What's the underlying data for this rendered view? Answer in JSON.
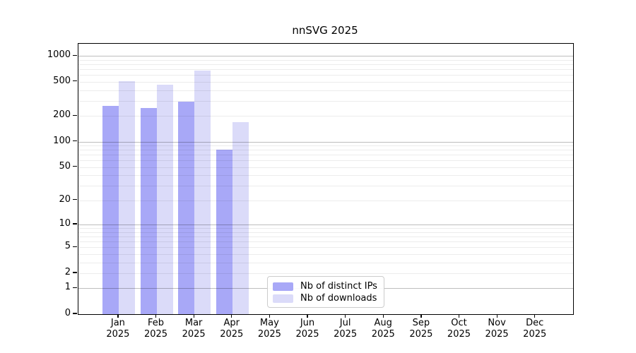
{
  "title": "nnSVG 2025",
  "chart_data": {
    "type": "bar",
    "title": "nnSVG 2025",
    "categories": [
      "Jan 2025",
      "Feb 2025",
      "Mar 2025",
      "Apr 2025",
      "May 2025",
      "Jun 2025",
      "Jul 2025",
      "Aug 2025",
      "Sep 2025",
      "Oct 2025",
      "Nov 2025",
      "Dec 2025"
    ],
    "month_labels": [
      "Jan",
      "Feb",
      "Mar",
      "Apr",
      "May",
      "Jun",
      "Jul",
      "Aug",
      "Sep",
      "Oct",
      "Nov",
      "Dec"
    ],
    "year_label": "2025",
    "series": [
      {
        "name": "Nb of distinct IPs",
        "color": "#a8a8f7",
        "values": [
          260,
          245,
          295,
          80,
          null,
          null,
          null,
          null,
          null,
          null,
          null,
          null
        ]
      },
      {
        "name": "Nb of downloads",
        "color": "#dbdbf9",
        "values": [
          510,
          460,
          675,
          170,
          null,
          null,
          null,
          null,
          null,
          null,
          null,
          null
        ]
      }
    ],
    "xlabel": "",
    "ylabel": "",
    "y_scale": "log10(1+x)",
    "y_ticks": [
      0,
      1,
      2,
      5,
      10,
      20,
      50,
      100,
      200,
      500,
      1000
    ],
    "y_minor_gridlines": [
      2,
      3,
      4,
      5,
      6,
      7,
      8,
      9,
      20,
      30,
      40,
      50,
      60,
      70,
      80,
      90,
      200,
      300,
      400,
      500,
      600,
      700,
      800,
      900
    ],
    "y_major_gridlines": [
      1,
      10,
      100,
      1000
    ],
    "ylim": [
      0,
      1385
    ],
    "grid": "horizontal",
    "legend_position": "lower center"
  },
  "colors": {
    "distinct_ips_bar": "#a8a8f7",
    "downloads_bar": "#dbdbf9",
    "axis": "#000000",
    "legend_border": "#cccccc",
    "background": "#ffffff"
  }
}
